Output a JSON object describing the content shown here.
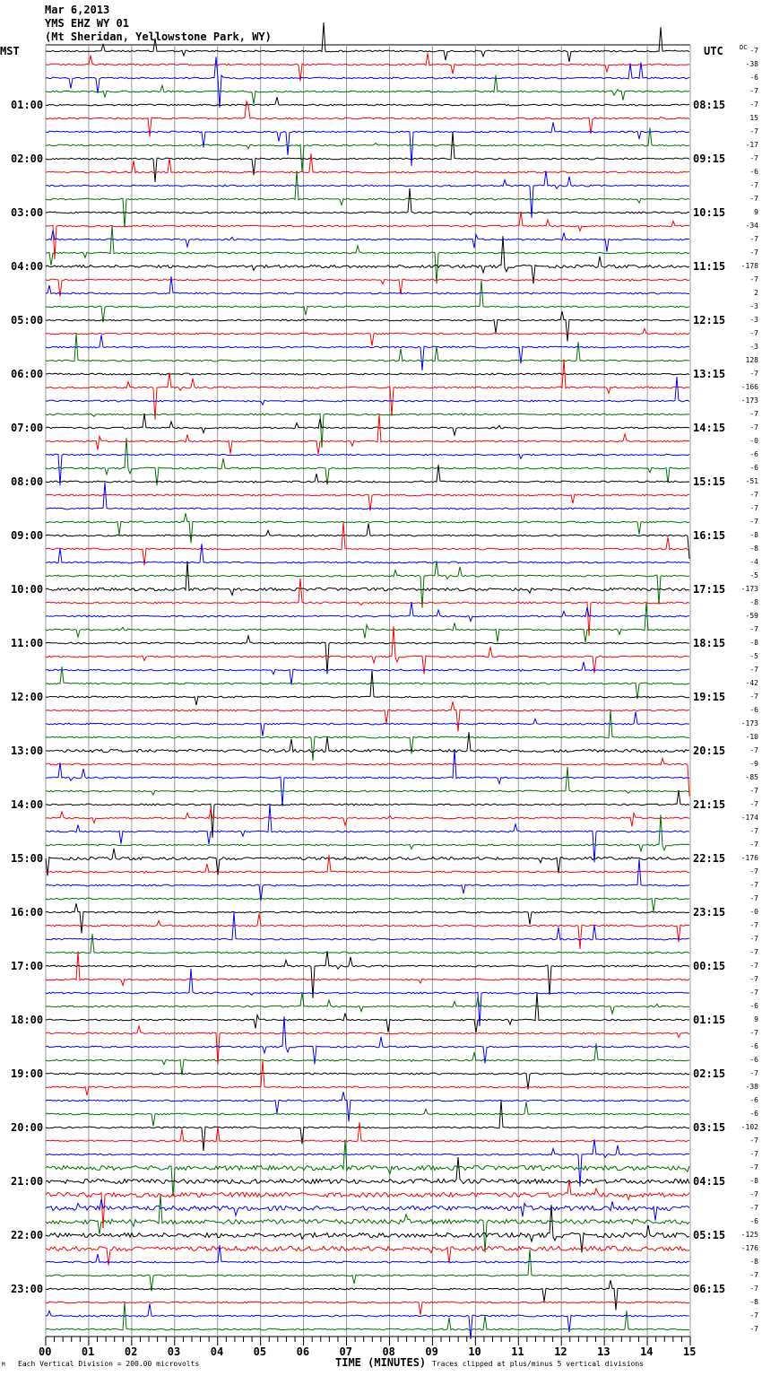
{
  "header": {
    "date": "Mar 6,2013",
    "station": "YMS EHZ WY 01",
    "location": "(Mt Sheridan, Yellowstone Park, WY)"
  },
  "left_timezone": "MST",
  "right_timezone": "UTC",
  "dc_label": "DC",
  "footer": {
    "scale": "Each Vertical Division =  200.00 microvolts",
    "clip_note": "Traces clipped at plus/minus 5 vertical divisions",
    "corner_mark": "M"
  },
  "chart_data": {
    "type": "line",
    "title": "YMS EHZ WY 01 helicorder",
    "xlabel": "TIME (MINUTES)",
    "xlim": [
      0,
      15
    ],
    "x_ticks": [
      "00",
      "01",
      "02",
      "03",
      "04",
      "05",
      "06",
      "07",
      "08",
      "09",
      "10",
      "11",
      "12",
      "13",
      "14",
      "15"
    ],
    "trace_colors": [
      "#000000",
      "#ff0000",
      "#0000ff",
      "#007000"
    ],
    "traces_per_hour": 4,
    "trace_count": 96,
    "left_hour_labels": [
      "",
      "01:00",
      "02:00",
      "03:00",
      "04:00",
      "05:00",
      "06:00",
      "07:00",
      "08:00",
      "09:00",
      "10:00",
      "11:00",
      "12:00",
      "13:00",
      "14:00",
      "15:00",
      "16:00",
      "17:00",
      "18:00",
      "19:00",
      "20:00",
      "21:00",
      "22:00",
      "23:00"
    ],
    "right_hour_labels": [
      "",
      "08:15",
      "09:15",
      "10:15",
      "11:15",
      "12:15",
      "13:15",
      "14:15",
      "15:15",
      "16:15",
      "17:15",
      "18:15",
      "19:15",
      "20:15",
      "21:15",
      "22:15",
      "23:15",
      "00:15",
      "01:15",
      "02:15",
      "03:15",
      "04:15",
      "05:15",
      "06:15"
    ],
    "dc_offsets": [
      "-7",
      "-38",
      "-6",
      "-7",
      "-7",
      "15",
      "-7",
      "-17",
      "-7",
      "-6",
      "-7",
      "-7",
      "9",
      "-34",
      "-7",
      "-7",
      "-178",
      "-7",
      "2",
      "-3",
      "-3",
      "-7",
      "-3",
      "128",
      "-7",
      "-166",
      "-173",
      "-7",
      "-7",
      "-0",
      "-6",
      "-6",
      "-51",
      "-7",
      "-7",
      "-7",
      "-8",
      "-8",
      "-4",
      "-5",
      "-173",
      "-8",
      "-59",
      "-7",
      "-8",
      "-5",
      "-7",
      "-42",
      "-7",
      "-6",
      "-173",
      "-10",
      "-7",
      "-9",
      "-85",
      "-7",
      "-7",
      "-174",
      "-7",
      "-7",
      "-176",
      "-7",
      "-7",
      "-7",
      "-0",
      "-7",
      "-7",
      "-7",
      "-7",
      "-7",
      "-7",
      "-6",
      "9",
      "-7",
      "-6",
      "-6",
      "-7",
      "-38",
      "-6",
      "-6",
      "-102",
      "-7",
      "-7",
      "-7",
      "-8",
      "-7",
      "-7",
      "-6",
      "-125",
      "-176",
      "-8",
      "-7",
      "-7",
      "-8",
      "-7",
      "-7"
    ]
  }
}
